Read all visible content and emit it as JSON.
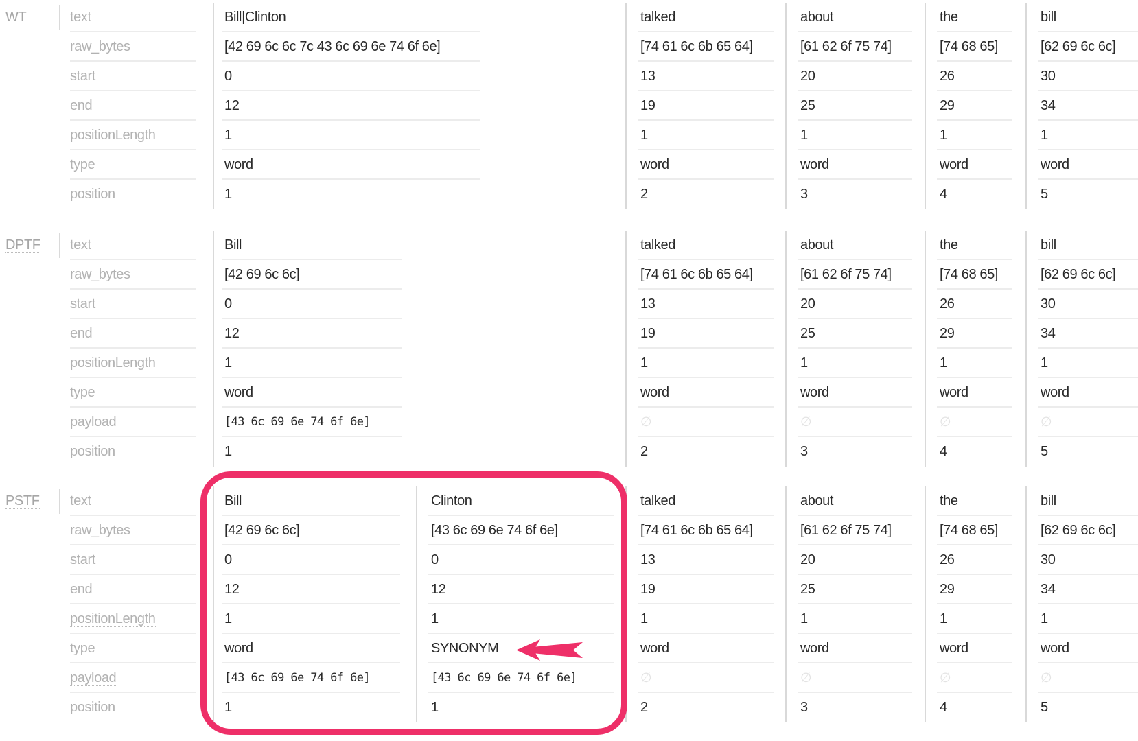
{
  "colors": {
    "highlight": "#ee2f68",
    "value_text": "#2a2a2a",
    "attr_label_text": "#b2b2b2",
    "section_label_text": "#a6a6a6",
    "empty_symbol_color": "#e3e3e3",
    "row_line": "#ececec",
    "divider": "#d9d9d9"
  },
  "annotation": {
    "highlight_target": "PSTF Bill and Clinton token columns",
    "arrow_icon": "left-arrow",
    "arrow_points_at": "SYNONYM"
  },
  "empty_symbol": "∅",
  "sections": [
    {
      "id": "WT",
      "label": "WT",
      "dotted": true,
      "attributes": [
        {
          "label": "text",
          "dotted": false
        },
        {
          "label": "raw_bytes",
          "dotted": false
        },
        {
          "label": "start",
          "dotted": false
        },
        {
          "label": "end",
          "dotted": false
        },
        {
          "label": "positionLength",
          "dotted": true
        },
        {
          "label": "type",
          "dotted": false
        },
        {
          "label": "position",
          "dotted": false
        }
      ],
      "tokens": [
        {
          "values": [
            "Bill|Clinton",
            "[42 69 6c 6c 7c 43 6c 69 6e 74 6f 6e]",
            "0",
            "12",
            "1",
            "word",
            "1"
          ]
        },
        {
          "values": [
            "talked",
            "[74 61 6c 6b 65 64]",
            "13",
            "19",
            "1",
            "word",
            "2"
          ]
        },
        {
          "values": [
            "about",
            "[61 62 6f 75 74]",
            "20",
            "25",
            "1",
            "word",
            "3"
          ]
        },
        {
          "values": [
            "the",
            "[74 68 65]",
            "26",
            "29",
            "1",
            "word",
            "4"
          ]
        },
        {
          "values": [
            "bill",
            "[62 69 6c 6c]",
            "30",
            "34",
            "1",
            "word",
            "5"
          ]
        }
      ]
    },
    {
      "id": "DPTF",
      "label": "DPTF",
      "dotted": true,
      "attributes": [
        {
          "label": "text",
          "dotted": false
        },
        {
          "label": "raw_bytes",
          "dotted": false
        },
        {
          "label": "start",
          "dotted": false
        },
        {
          "label": "end",
          "dotted": false
        },
        {
          "label": "positionLength",
          "dotted": true
        },
        {
          "label": "type",
          "dotted": false
        },
        {
          "label": "payload",
          "dotted": true
        },
        {
          "label": "position",
          "dotted": false
        }
      ],
      "tokens": [
        {
          "values": [
            "Bill",
            "[42 69 6c 6c]",
            "0",
            "12",
            "1",
            "word",
            "[43 6c 69 6e 74 6f 6e]",
            "1"
          ]
        },
        {
          "values": [
            "talked",
            "[74 61 6c 6b 65 64]",
            "13",
            "19",
            "1",
            "word",
            "∅",
            "2"
          ]
        },
        {
          "values": [
            "about",
            "[61 62 6f 75 74]",
            "20",
            "25",
            "1",
            "word",
            "∅",
            "3"
          ]
        },
        {
          "values": [
            "the",
            "[74 68 65]",
            "26",
            "29",
            "1",
            "word",
            "∅",
            "4"
          ]
        },
        {
          "values": [
            "bill",
            "[62 69 6c 6c]",
            "30",
            "34",
            "1",
            "word",
            "∅",
            "5"
          ]
        }
      ]
    },
    {
      "id": "PSTF",
      "label": "PSTF",
      "dotted": true,
      "attributes": [
        {
          "label": "text",
          "dotted": false
        },
        {
          "label": "raw_bytes",
          "dotted": false
        },
        {
          "label": "start",
          "dotted": false
        },
        {
          "label": "end",
          "dotted": false
        },
        {
          "label": "positionLength",
          "dotted": true
        },
        {
          "label": "type",
          "dotted": false
        },
        {
          "label": "payload",
          "dotted": true
        },
        {
          "label": "position",
          "dotted": false
        }
      ],
      "tokens": [
        {
          "values": [
            "Bill",
            "[42 69 6c 6c]",
            "0",
            "12",
            "1",
            "word",
            "[43 6c 69 6e 74 6f 6e]",
            "1"
          ]
        },
        {
          "values": [
            "Clinton",
            "[43 6c 69 6e 74 6f 6e]",
            "0",
            "12",
            "1",
            "SYNONYM",
            "[43 6c 69 6e 74 6f 6e]",
            "1"
          ]
        },
        {
          "values": [
            "talked",
            "[74 61 6c 6b 65 64]",
            "13",
            "19",
            "1",
            "word",
            "∅",
            "2"
          ]
        },
        {
          "values": [
            "about",
            "[61 62 6f 75 74]",
            "20",
            "25",
            "1",
            "word",
            "∅",
            "3"
          ]
        },
        {
          "values": [
            "the",
            "[74 68 65]",
            "26",
            "29",
            "1",
            "word",
            "∅",
            "4"
          ]
        },
        {
          "values": [
            "bill",
            "[62 69 6c 6c]",
            "30",
            "34",
            "1",
            "word",
            "∅",
            "5"
          ]
        }
      ]
    }
  ]
}
